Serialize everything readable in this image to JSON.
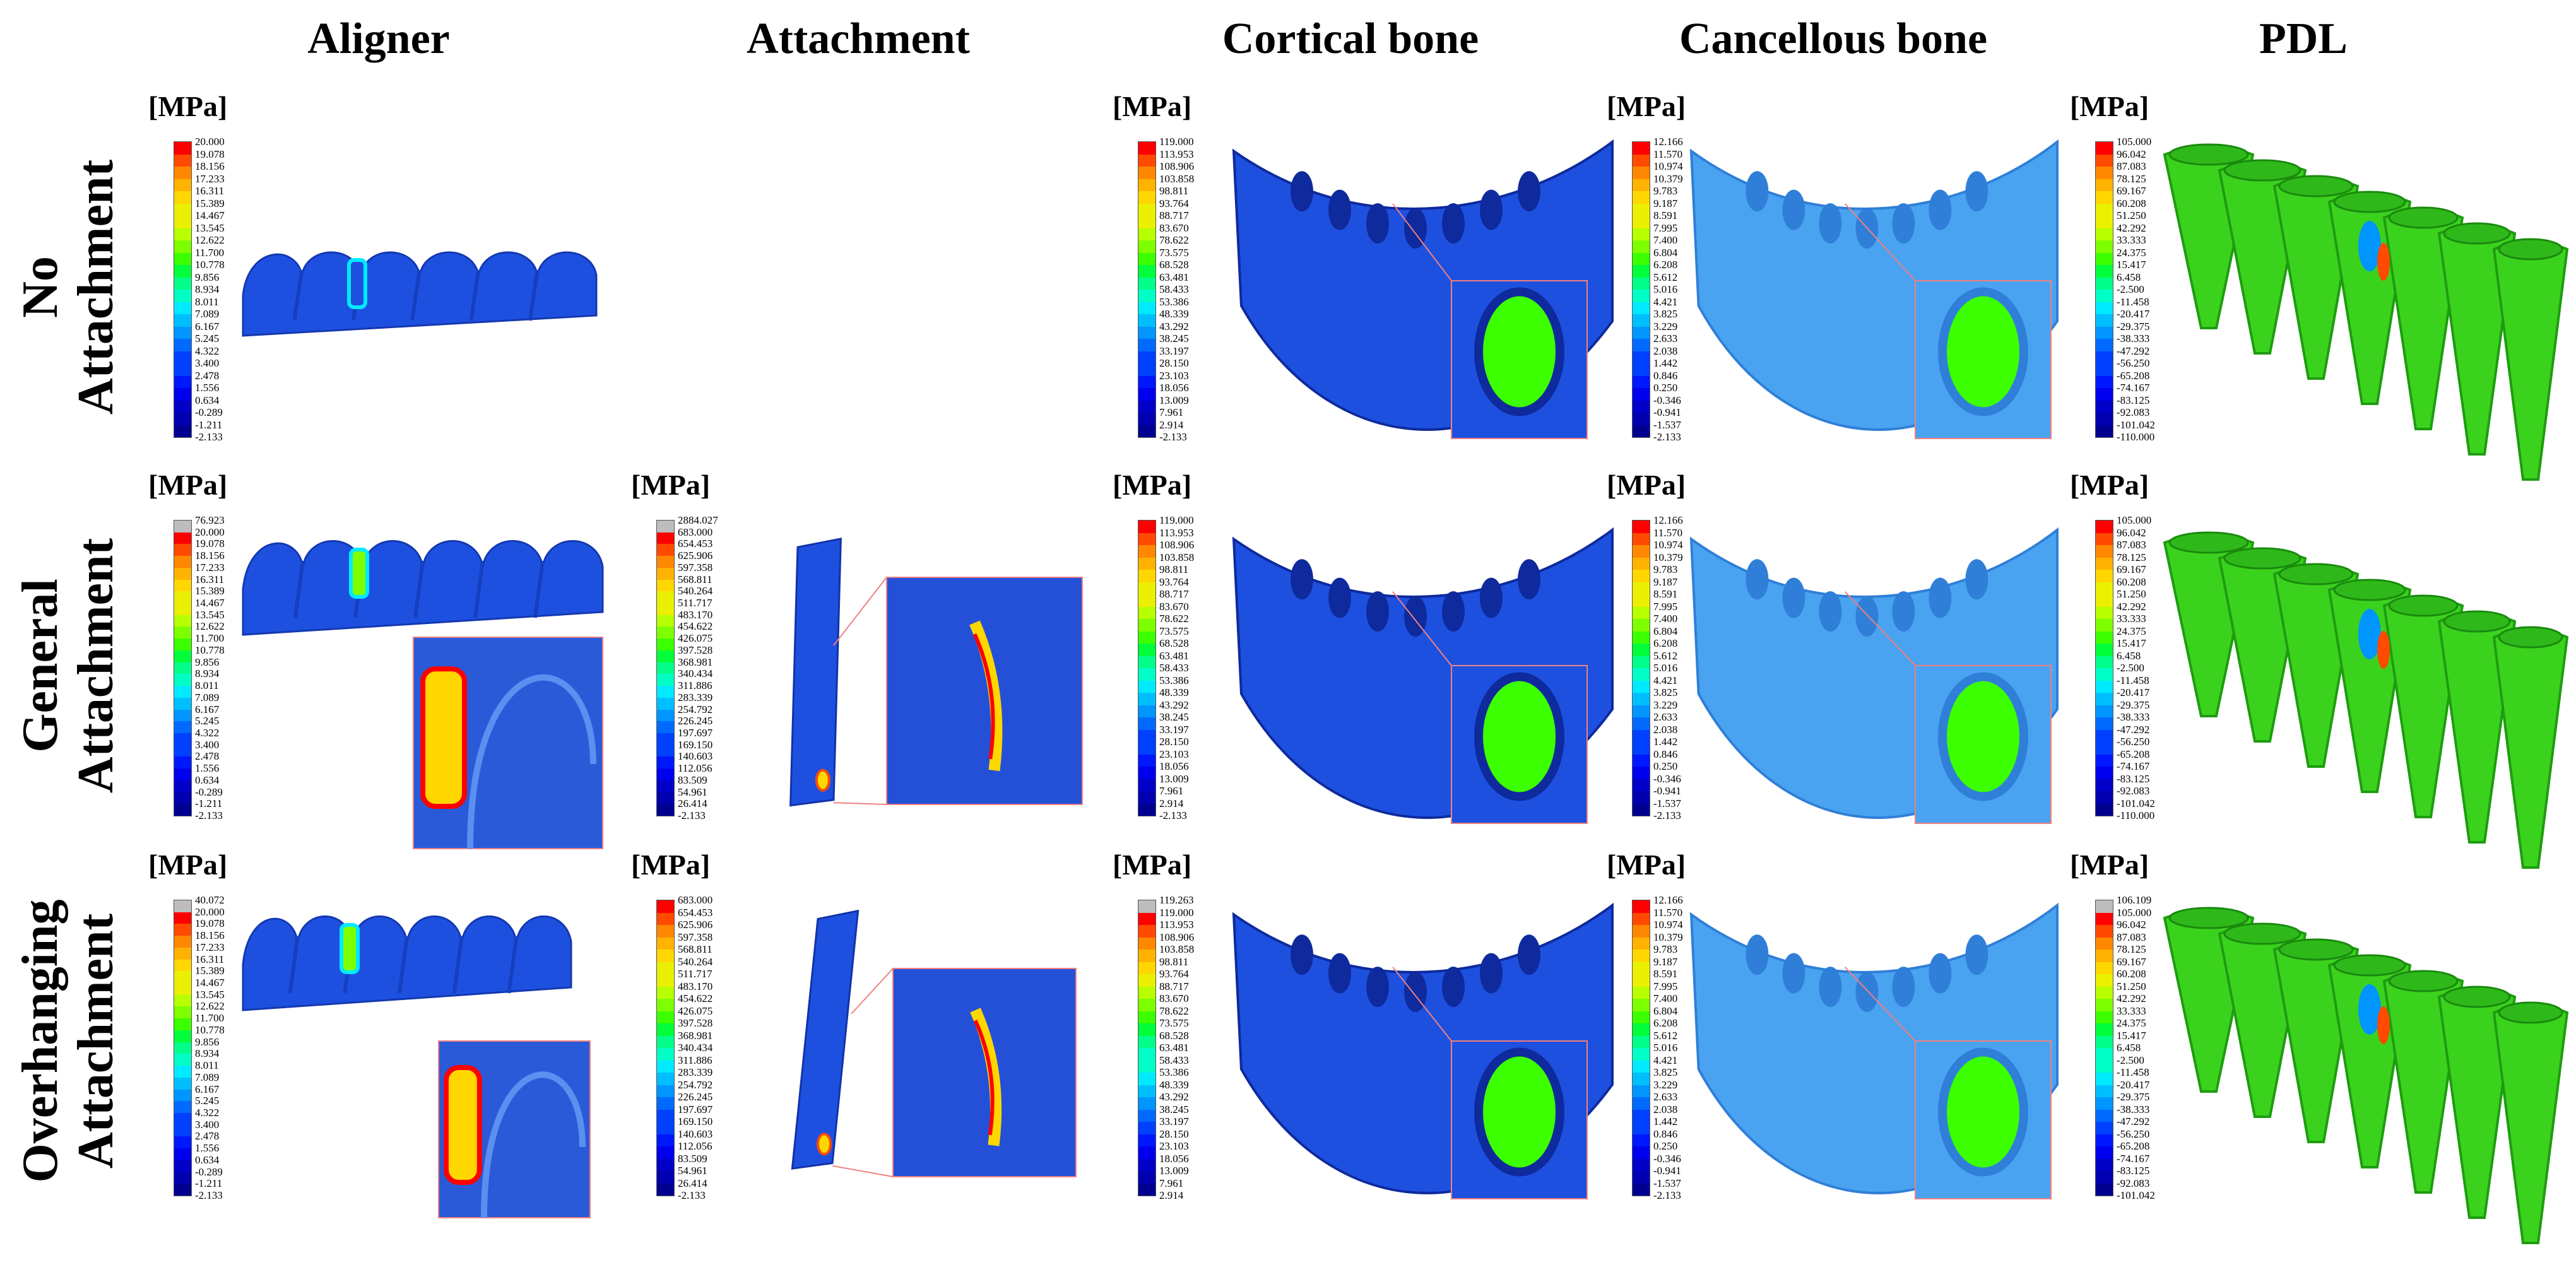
{
  "columns": [
    "Aligner",
    "Attachment",
    "Cortical bone",
    "Cancellous bone",
    "PDL"
  ],
  "rows": [
    {
      "line1": "No",
      "line2": "Attachment"
    },
    {
      "line1": "General",
      "line2": "Attachment"
    },
    {
      "line1": "Overhanging",
      "line2": "Attachment"
    }
  ],
  "unit": "[MPa]",
  "colors": {
    "scale": [
      "#ff0000",
      "#ff4a00",
      "#ff8800",
      "#ffb300",
      "#ffd700",
      "#eaf000",
      "#b8ff00",
      "#7dff00",
      "#3cff00",
      "#00ff3a",
      "#00ff8a",
      "#00ffc6",
      "#00eaff",
      "#00bfff",
      "#0095ff",
      "#006aff",
      "#0040ff",
      "#0018ff",
      "#0000ee",
      "#0000c8",
      "#0000b0",
      "#000090",
      "#0000ff"
    ],
    "overflow": "#bdbdbd",
    "callout": "#f08080",
    "model_blue": "#1e50e0",
    "model_light": "#4aa3f0",
    "model_green": "#3bd21e"
  },
  "legends": {
    "aligner_r1": [
      "20.000",
      "19.078",
      "18.156",
      "17.233",
      "16.311",
      "15.389",
      "14.467",
      "13.545",
      "12.622",
      "11.700",
      "10.778",
      "9.856",
      "8.934",
      "8.011",
      "7.089",
      "6.167",
      "5.245",
      "4.322",
      "3.400",
      "2.478",
      "1.556",
      "0.634",
      "-0.289",
      "-1.211",
      "-2.133"
    ],
    "aligner_r2": [
      "76.923",
      "20.000",
      "19.078",
      "18.156",
      "17.233",
      "16.311",
      "15.389",
      "14.467",
      "13.545",
      "12.622",
      "11.700",
      "10.778",
      "9.856",
      "8.934",
      "8.011",
      "7.089",
      "6.167",
      "5.245",
      "4.322",
      "3.400",
      "2.478",
      "1.556",
      "0.634",
      "-0.289",
      "-1.211",
      "-2.133"
    ],
    "aligner_r3": [
      "40.072",
      "20.000",
      "19.078",
      "18.156",
      "17.233",
      "16.311",
      "15.389",
      "14.467",
      "13.545",
      "12.622",
      "11.700",
      "10.778",
      "9.856",
      "8.934",
      "8.011",
      "7.089",
      "6.167",
      "5.245",
      "4.322",
      "3.400",
      "2.478",
      "1.556",
      "0.634",
      "-0.289",
      "-1.211",
      "-2.133"
    ],
    "attach_r2": [
      "2884.027",
      "683.000",
      "654.453",
      "625.906",
      "597.358",
      "568.811",
      "540.264",
      "511.717",
      "483.170",
      "454.622",
      "426.075",
      "397.528",
      "368.981",
      "340.434",
      "311.886",
      "283.339",
      "254.792",
      "226.245",
      "197.697",
      "169.150",
      "140.603",
      "112.056",
      "83.509",
      "54.961",
      "26.414",
      "-2.133"
    ],
    "attach_r3": [
      "683.000",
      "654.453",
      "625.906",
      "597.358",
      "568.811",
      "540.264",
      "511.717",
      "483.170",
      "454.622",
      "426.075",
      "397.528",
      "368.981",
      "340.434",
      "311.886",
      "283.339",
      "254.792",
      "226.245",
      "197.697",
      "169.150",
      "140.603",
      "112.056",
      "83.509",
      "54.961",
      "26.414",
      "-2.133"
    ],
    "cortical_r1": [
      "119.000",
      "113.953",
      "108.906",
      "103.858",
      "98.811",
      "93.764",
      "88.717",
      "83.670",
      "78.622",
      "73.575",
      "68.528",
      "63.481",
      "58.433",
      "53.386",
      "48.339",
      "43.292",
      "38.245",
      "33.197",
      "28.150",
      "23.103",
      "18.056",
      "13.009",
      "7.961",
      "2.914",
      "-2.133"
    ],
    "cortical_r2": [
      "119.000",
      "113.953",
      "108.906",
      "103.858",
      "98.811",
      "93.764",
      "88.717",
      "83.670",
      "78.622",
      "73.575",
      "68.528",
      "63.481",
      "58.433",
      "53.386",
      "48.339",
      "43.292",
      "38.245",
      "33.197",
      "28.150",
      "23.103",
      "18.056",
      "13.009",
      "7.961",
      "2.914",
      "-2.133"
    ],
    "cortical_r3": [
      "119.263",
      "119.000",
      "113.953",
      "108.906",
      "103.858",
      "98.811",
      "93.764",
      "88.717",
      "83.670",
      "78.622",
      "73.575",
      "68.528",
      "63.481",
      "58.433",
      "53.386",
      "48.339",
      "43.292",
      "38.245",
      "33.197",
      "28.150",
      "23.103",
      "18.056",
      "13.009",
      "7.961",
      "2.914"
    ],
    "cancellous_r1": [
      "12.166",
      "11.570",
      "10.974",
      "10.379",
      "9.783",
      "9.187",
      "8.591",
      "7.995",
      "7.400",
      "6.804",
      "6.208",
      "5.612",
      "5.016",
      "4.421",
      "3.825",
      "3.229",
      "2.633",
      "2.038",
      "1.442",
      "0.846",
      "0.250",
      "-0.346",
      "-0.941",
      "-1.537",
      "-2.133"
    ],
    "cancellous_r2": [
      "12.166",
      "11.570",
      "10.974",
      "10.379",
      "9.783",
      "9.187",
      "8.591",
      "7.995",
      "7.400",
      "6.804",
      "6.208",
      "5.612",
      "5.016",
      "4.421",
      "3.825",
      "3.229",
      "2.633",
      "2.038",
      "1.442",
      "0.846",
      "0.250",
      "-0.346",
      "-0.941",
      "-1.537",
      "-2.133"
    ],
    "cancellous_r3": [
      "12.166",
      "11.570",
      "10.974",
      "10.379",
      "9.783",
      "9.187",
      "8.591",
      "7.995",
      "7.400",
      "6.804",
      "6.208",
      "5.612",
      "5.016",
      "4.421",
      "3.825",
      "3.229",
      "2.633",
      "2.038",
      "1.442",
      "0.846",
      "0.250",
      "-0.346",
      "-0.941",
      "-1.537",
      "-2.133"
    ],
    "pdl_r1": [
      "105.000",
      "96.042",
      "87.083",
      "78.125",
      "69.167",
      "60.208",
      "51.250",
      "42.292",
      "33.333",
      "24.375",
      "15.417",
      "6.458",
      "-2.500",
      "-11.458",
      "-20.417",
      "-29.375",
      "-38.333",
      "-47.292",
      "-56.250",
      "-65.208",
      "-74.167",
      "-83.125",
      "-92.083",
      "-101.042",
      "-110.000"
    ],
    "pdl_r2": [
      "105.000",
      "96.042",
      "87.083",
      "78.125",
      "69.167",
      "60.208",
      "51.250",
      "42.292",
      "33.333",
      "24.375",
      "15.417",
      "6.458",
      "-2.500",
      "-11.458",
      "-20.417",
      "-29.375",
      "-38.333",
      "-47.292",
      "-56.250",
      "-65.208",
      "-74.167",
      "-83.125",
      "-92.083",
      "-101.042",
      "-110.000"
    ],
    "pdl_r3": [
      "106.109",
      "105.000",
      "96.042",
      "87.083",
      "78.125",
      "69.167",
      "60.208",
      "51.250",
      "42.292",
      "33.333",
      "24.375",
      "15.417",
      "6.458",
      "-2.500",
      "-11.458",
      "-20.417",
      "-29.375",
      "-38.333",
      "-47.292",
      "-56.250",
      "-65.208",
      "-74.167",
      "-83.125",
      "-92.083",
      "-101.042"
    ]
  }
}
